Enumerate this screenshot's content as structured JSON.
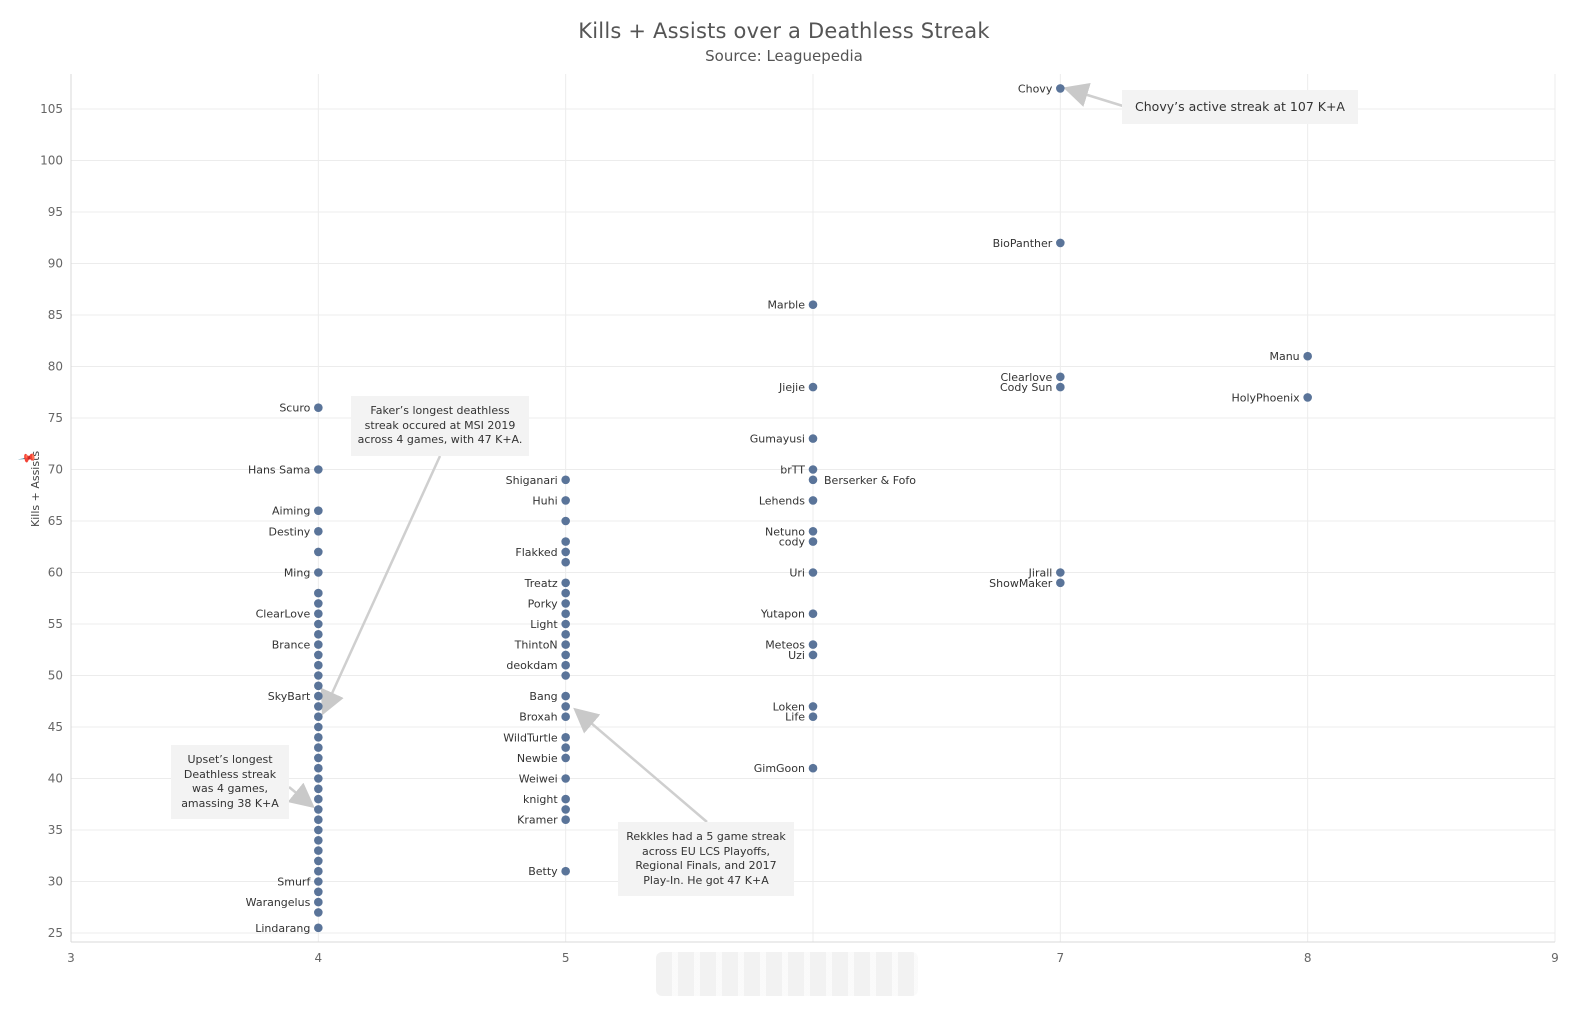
{
  "chart_data": {
    "type": "scatter",
    "title": "Kills + Assists over a Deathless Streak",
    "subtitle": "Source: Leaguepedia",
    "xlabel": "",
    "ylabel": "Kills + Assists",
    "xlim": [
      3,
      9
    ],
    "ylim": [
      24,
      107
    ],
    "x_ticks": [
      3,
      4,
      5,
      6,
      7,
      8,
      9
    ],
    "x_tick_labels": [
      "3",
      "4",
      "5",
      "",
      "7",
      "8",
      "9"
    ],
    "y_ticks": [
      25,
      30,
      35,
      40,
      45,
      50,
      55,
      60,
      65,
      70,
      75,
      80,
      85,
      90,
      95,
      100,
      105
    ],
    "grid": true,
    "point_color": "#5a7499",
    "points": [
      {
        "x": 7,
        "y": 107,
        "label": "Chovy"
      },
      {
        "x": 7,
        "y": 92,
        "label": "BioPanther"
      },
      {
        "x": 7,
        "y": 79,
        "label": "Clearlove"
      },
      {
        "x": 7,
        "y": 78,
        "label": "Cody Sun"
      },
      {
        "x": 7,
        "y": 60,
        "label": "Jirall"
      },
      {
        "x": 7,
        "y": 59,
        "label": "ShowMaker"
      },
      {
        "x": 8,
        "y": 81,
        "label": "Manu"
      },
      {
        "x": 8,
        "y": 77,
        "label": "HolyPhoenix"
      },
      {
        "x": 6,
        "y": 86,
        "label": "Marble"
      },
      {
        "x": 6,
        "y": 78,
        "label": "Jiejie"
      },
      {
        "x": 6,
        "y": 73,
        "label": "Gumayusi"
      },
      {
        "x": 6,
        "y": 70,
        "label": "brTT"
      },
      {
        "x": 6,
        "y": 69,
        "label": "Berserker & Fofo",
        "side": "right"
      },
      {
        "x": 6,
        "y": 67,
        "label": "Lehends"
      },
      {
        "x": 6,
        "y": 64,
        "label": "Netuno"
      },
      {
        "x": 6,
        "y": 63,
        "label": "cody"
      },
      {
        "x": 6,
        "y": 60,
        "label": "Uri"
      },
      {
        "x": 6,
        "y": 56,
        "label": "Yutapon"
      },
      {
        "x": 6,
        "y": 53,
        "label": "Meteos"
      },
      {
        "x": 6,
        "y": 52,
        "label": "Uzi"
      },
      {
        "x": 6,
        "y": 47,
        "label": "Loken"
      },
      {
        "x": 6,
        "y": 46,
        "label": "Life"
      },
      {
        "x": 6,
        "y": 41,
        "label": "GimGoon"
      },
      {
        "x": 5,
        "y": 69,
        "label": "Shiganari"
      },
      {
        "x": 5,
        "y": 67,
        "label": "Huhi"
      },
      {
        "x": 5,
        "y": 65,
        "label": ""
      },
      {
        "x": 5,
        "y": 63,
        "label": ""
      },
      {
        "x": 5,
        "y": 62,
        "label": "Flakked"
      },
      {
        "x": 5,
        "y": 61,
        "label": ""
      },
      {
        "x": 5,
        "y": 59,
        "label": "Treatz"
      },
      {
        "x": 5,
        "y": 58,
        "label": ""
      },
      {
        "x": 5,
        "y": 57,
        "label": "Porky"
      },
      {
        "x": 5,
        "y": 56,
        "label": ""
      },
      {
        "x": 5,
        "y": 55,
        "label": "Light"
      },
      {
        "x": 5,
        "y": 54,
        "label": ""
      },
      {
        "x": 5,
        "y": 53,
        "label": "ThintoN"
      },
      {
        "x": 5,
        "y": 52,
        "label": ""
      },
      {
        "x": 5,
        "y": 51,
        "label": "deokdam"
      },
      {
        "x": 5,
        "y": 50,
        "label": ""
      },
      {
        "x": 5,
        "y": 48,
        "label": "Bang"
      },
      {
        "x": 5,
        "y": 47,
        "label": ""
      },
      {
        "x": 5,
        "y": 46,
        "label": "Broxah"
      },
      {
        "x": 5,
        "y": 44,
        "label": "WildTurtle"
      },
      {
        "x": 5,
        "y": 43,
        "label": ""
      },
      {
        "x": 5,
        "y": 42,
        "label": "Newbie"
      },
      {
        "x": 5,
        "y": 40,
        "label": "Weiwei"
      },
      {
        "x": 5,
        "y": 38,
        "label": "knight"
      },
      {
        "x": 5,
        "y": 37,
        "label": ""
      },
      {
        "x": 5,
        "y": 36,
        "label": "Kramer"
      },
      {
        "x": 5,
        "y": 31,
        "label": "Betty"
      },
      {
        "x": 4,
        "y": 76,
        "label": "Scuro"
      },
      {
        "x": 4,
        "y": 70,
        "label": "Hans Sama"
      },
      {
        "x": 4,
        "y": 66,
        "label": "Aiming"
      },
      {
        "x": 4,
        "y": 64,
        "label": "Destiny"
      },
      {
        "x": 4,
        "y": 62,
        "label": ""
      },
      {
        "x": 4,
        "y": 60,
        "label": "Ming"
      },
      {
        "x": 4,
        "y": 58,
        "label": ""
      },
      {
        "x": 4,
        "y": 57,
        "label": ""
      },
      {
        "x": 4,
        "y": 56,
        "label": "ClearLove"
      },
      {
        "x": 4,
        "y": 55,
        "label": ""
      },
      {
        "x": 4,
        "y": 54,
        "label": ""
      },
      {
        "x": 4,
        "y": 53,
        "label": "Brance"
      },
      {
        "x": 4,
        "y": 52,
        "label": ""
      },
      {
        "x": 4,
        "y": 51,
        "label": ""
      },
      {
        "x": 4,
        "y": 50,
        "label": ""
      },
      {
        "x": 4,
        "y": 49,
        "label": ""
      },
      {
        "x": 4,
        "y": 48,
        "label": "SkyBart"
      },
      {
        "x": 4,
        "y": 47,
        "label": ""
      },
      {
        "x": 4,
        "y": 46,
        "label": ""
      },
      {
        "x": 4,
        "y": 45,
        "label": ""
      },
      {
        "x": 4,
        "y": 44,
        "label": ""
      },
      {
        "x": 4,
        "y": 43,
        "label": ""
      },
      {
        "x": 4,
        "y": 42,
        "label": ""
      },
      {
        "x": 4,
        "y": 41,
        "label": ""
      },
      {
        "x": 4,
        "y": 40,
        "label": ""
      },
      {
        "x": 4,
        "y": 39,
        "label": ""
      },
      {
        "x": 4,
        "y": 38,
        "label": ""
      },
      {
        "x": 4,
        "y": 37,
        "label": ""
      },
      {
        "x": 4,
        "y": 36,
        "label": ""
      },
      {
        "x": 4,
        "y": 35,
        "label": ""
      },
      {
        "x": 4,
        "y": 34,
        "label": ""
      },
      {
        "x": 4,
        "y": 33,
        "label": ""
      },
      {
        "x": 4,
        "y": 32,
        "label": ""
      },
      {
        "x": 4,
        "y": 31,
        "label": ""
      },
      {
        "x": 4,
        "y": 30,
        "label": "Smurf"
      },
      {
        "x": 4,
        "y": 29,
        "label": ""
      },
      {
        "x": 4,
        "y": 28,
        "label": "Warangelus"
      },
      {
        "x": 4,
        "y": 27,
        "label": ""
      },
      {
        "x": 4,
        "y": 25.5,
        "label": "Lindarang"
      }
    ],
    "annotations": {
      "chovy": "Chovy’s active streak at 107 K+A",
      "faker": [
        "Faker’s longest deathless",
        "streak occured at MSI 2019",
        "across 4 games, with 47 K+A."
      ],
      "upset": [
        "Upset’s longest",
        "Deathless streak",
        "was 4 games,",
        "amassing 38 K+A"
      ],
      "rekkles": [
        "Rekkles had a 5 game streak",
        "across EU LCS Playoffs,",
        "Regional Finals, and 2017",
        "Play-In. He got 47 K+A"
      ]
    }
  }
}
